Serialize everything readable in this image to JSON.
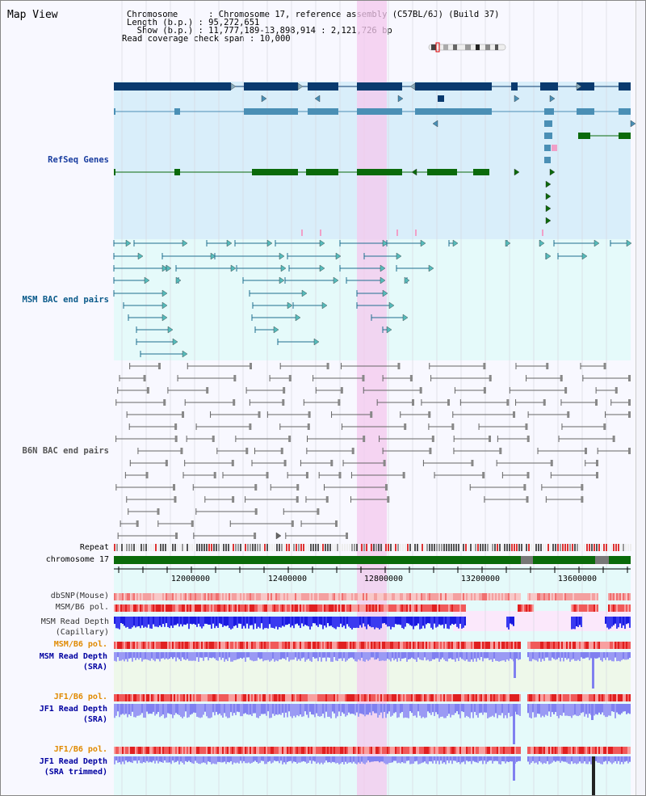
{
  "view": {
    "title": "Map View",
    "chromosome_line": "Chromosome      : Chromosome 17, reference assembly (C57BL/6J) (Build 37)",
    "length_line": "Length (b.p.) : 95,272,651",
    "show_line": "  Show (b.p.) : 11,777,189-13,898,914 : 2,121,726 bp",
    "coverage_line": "Read coverage check span : 10,000"
  },
  "tracks": {
    "refseq": "RefSeq Genes",
    "msm_bac": "MSM BAC end pairs",
    "b6n_bac": "B6N BAC end pairs",
    "repeat": "Repeat",
    "chromosome": "chromosome 17",
    "dbsnp": "dbSNP(Mouse)",
    "msm_pol_1": "MSM/B6 pol.",
    "msm_depth_cap_1": "MSM Read Depth",
    "msm_depth_cap_2": "(Capillary)",
    "msm_pol_2": "MSM/B6 pol.",
    "msm_depth_sra_1": "MSM Read Depth",
    "msm_depth_sra_2": "(SRA)",
    "jf1_pol_1": "JF1/B6 pol.",
    "jf1_depth_sra_1": "JF1 Read Depth",
    "jf1_depth_sra_2": "(SRA)",
    "jf1_pol_2": "JF1/B6 pol.",
    "jf1_depth_trim_1": "JF1 Read Depth",
    "jf1_depth_trim_2": "(SRA trimmed)"
  },
  "axis": {
    "ticks": [
      "12000000",
      "12400000",
      "12800000",
      "13200000",
      "13600000"
    ]
  },
  "colors": {
    "refseq_bg": "#d9eefa",
    "bac_bg": "#e5fafa",
    "highlight": "#f8d6f0",
    "gene_dark": "#0a3a6e",
    "gene_mid": "#4a8fb5",
    "gene_green": "#0a6a0a",
    "msm_bac": "#1f6f8f",
    "b6n_bac": "#666666",
    "chrom": "#0a6a0a",
    "depth_blue": "#2020e0",
    "depth_light": "#8080f0",
    "pol_label": "#e08a00",
    "depth_label": "#0000a0",
    "msm_label": "#0a5a8a",
    "refseq_label": "#1a3ea0"
  }
}
